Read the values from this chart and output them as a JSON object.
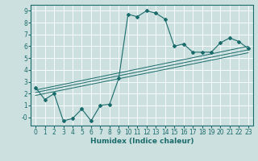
{
  "xlabel": "Humidex (Indice chaleur)",
  "xlim": [
    -0.5,
    23.5
  ],
  "ylim": [
    -0.7,
    9.5
  ],
  "xticks": [
    0,
    1,
    2,
    3,
    4,
    5,
    6,
    7,
    8,
    9,
    10,
    11,
    12,
    13,
    14,
    15,
    16,
    17,
    18,
    19,
    20,
    21,
    22,
    23
  ],
  "yticks": [
    0,
    1,
    2,
    3,
    4,
    5,
    6,
    7,
    8,
    9
  ],
  "ytick_labels": [
    "-0",
    "1",
    "2",
    "3",
    "4",
    "5",
    "6",
    "7",
    "8",
    "9"
  ],
  "bg_color": "#cde0e0",
  "grid_color": "#b8d0d0",
  "line_color": "#1a6b6b",
  "curve1_x": [
    0,
    1,
    2,
    3,
    4,
    5,
    6,
    7,
    8,
    9,
    10,
    11,
    12,
    13,
    14,
    15,
    16,
    17,
    18,
    19,
    20,
    21,
    22,
    23
  ],
  "curve1_y": [
    2.5,
    1.5,
    2.0,
    -0.3,
    -0.1,
    0.7,
    -0.3,
    1.0,
    1.1,
    3.3,
    8.7,
    8.5,
    9.0,
    8.8,
    8.3,
    6.0,
    6.2,
    5.5,
    5.5,
    5.5,
    6.3,
    6.7,
    6.4,
    5.8
  ],
  "line2_x": [
    0,
    23
  ],
  "line2_y": [
    2.3,
    6.0
  ],
  "line3_x": [
    0,
    23
  ],
  "line3_y": [
    2.1,
    5.7
  ],
  "line4_x": [
    0,
    23
  ],
  "line4_y": [
    1.85,
    5.45
  ],
  "figsize": [
    3.2,
    2.0
  ],
  "dpi": 100,
  "tick_fontsize": 5.5,
  "xlabel_fontsize": 6.5
}
